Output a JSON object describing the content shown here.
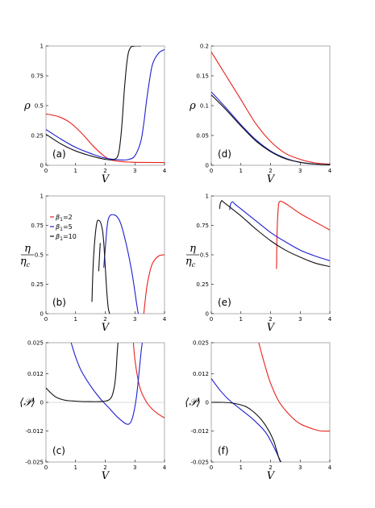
{
  "colors": {
    "beta2": "#e8201c",
    "beta5": "#1f1fd0",
    "beta10": "#111111"
  },
  "chart_data": [
    {
      "panel": "(a)",
      "type": "line",
      "xlabel": "V",
      "ylabel": "ρ",
      "xlim": [
        0,
        4
      ],
      "ylim": [
        0,
        1
      ],
      "xticks": [
        0,
        1,
        2,
        3,
        4
      ],
      "xtick_labels": [
        "0",
        "1",
        "2",
        "3",
        "4"
      ],
      "yticks": [
        0,
        0.25,
        0.5,
        0.75,
        1
      ],
      "ytick_labels": [
        "0",
        "0.25",
        "0.5",
        "0.75",
        "1"
      ],
      "series": [
        {
          "key": "beta2",
          "x": [
            0,
            0.4,
            0.8,
            1.2,
            1.6,
            2.0,
            2.2,
            2.4,
            2.6,
            2.8,
            3.0,
            3.4,
            4.0
          ],
          "y": [
            0.43,
            0.41,
            0.36,
            0.27,
            0.16,
            0.07,
            0.045,
            0.035,
            0.03,
            0.027,
            0.025,
            0.024,
            0.023
          ]
        },
        {
          "key": "beta5",
          "x": [
            0,
            0.5,
            1.0,
            1.5,
            2.0,
            2.5,
            2.8,
            3.0,
            3.2,
            3.3,
            3.4,
            3.5,
            3.6,
            3.8,
            4.0
          ],
          "y": [
            0.3,
            0.22,
            0.15,
            0.1,
            0.06,
            0.045,
            0.05,
            0.08,
            0.2,
            0.35,
            0.55,
            0.72,
            0.85,
            0.94,
            0.97
          ]
        },
        {
          "key": "beta10",
          "x": [
            0,
            0.5,
            1.0,
            1.5,
            2.0,
            2.3,
            2.45,
            2.55,
            2.65,
            2.75,
            2.85,
            3.0,
            3.2
          ],
          "y": [
            0.26,
            0.18,
            0.12,
            0.08,
            0.05,
            0.05,
            0.1,
            0.3,
            0.65,
            0.9,
            0.985,
            1.0,
            1.0
          ]
        }
      ]
    },
    {
      "panel": "(d)",
      "type": "line",
      "xlabel": "V",
      "ylabel": "ρ",
      "xlim": [
        0,
        4
      ],
      "ylim": [
        0,
        0.2
      ],
      "xticks": [
        0,
        1,
        2,
        3,
        4
      ],
      "xtick_labels": [
        "0",
        "1",
        "2",
        "3",
        "4"
      ],
      "yticks": [
        0,
        0.05,
        0.1,
        0.15,
        0.2
      ],
      "ytick_labels": [
        "0",
        "0.05",
        "0.1",
        "0.15",
        "0.2"
      ],
      "series": [
        {
          "key": "beta2",
          "x": [
            0,
            0.5,
            1.0,
            1.5,
            2.0,
            2.5,
            3.0,
            3.5,
            4.0
          ],
          "y": [
            0.19,
            0.15,
            0.11,
            0.07,
            0.04,
            0.02,
            0.01,
            0.004,
            0.002
          ]
        },
        {
          "key": "beta5",
          "x": [
            0,
            0.5,
            1.0,
            1.5,
            2.0,
            2.5,
            3.0,
            3.5,
            4.0
          ],
          "y": [
            0.123,
            0.096,
            0.068,
            0.043,
            0.024,
            0.012,
            0.005,
            0.002,
            0.001
          ]
        },
        {
          "key": "beta10",
          "x": [
            0,
            0.5,
            1.0,
            1.5,
            2.0,
            2.5,
            3.0,
            3.5,
            4.0
          ],
          "y": [
            0.118,
            0.093,
            0.066,
            0.041,
            0.023,
            0.011,
            0.005,
            0.002,
            0.001
          ]
        }
      ]
    },
    {
      "panel": "(b)",
      "type": "line",
      "xlabel": "V",
      "ylabel": "η",
      "ylabel_sub": "η_c",
      "xlim": [
        0,
        4
      ],
      "ylim": [
        0,
        1
      ],
      "xticks": [
        0,
        1,
        2,
        3,
        4
      ],
      "xtick_labels": [
        "0",
        "1",
        "2",
        "3",
        "4"
      ],
      "yticks": [
        0,
        0.25,
        0.5,
        0.75,
        1
      ],
      "ytick_labels": [
        "0",
        "0.25",
        "0.5",
        "0.75",
        "1"
      ],
      "legend": {
        "placement": "top-left",
        "entries": [
          {
            "key": "beta2",
            "label": "β1=2"
          },
          {
            "key": "beta5",
            "label": "β1=5"
          },
          {
            "key": "beta10",
            "label": "β1=10"
          }
        ]
      },
      "series": [
        {
          "key": "beta2",
          "x": [
            3.3,
            3.4,
            3.5,
            3.6,
            3.8,
            4.0
          ],
          "y": [
            0.0,
            0.22,
            0.35,
            0.43,
            0.49,
            0.5
          ]
        },
        {
          "key": "beta5",
          "x": [
            1.95,
            2.0,
            2.1,
            2.3,
            2.5,
            2.7,
            2.9,
            3.05,
            3.1,
            3.12
          ],
          "y": [
            0.39,
            0.55,
            0.8,
            0.84,
            0.78,
            0.6,
            0.35,
            0.1,
            0.02,
            0.0
          ]
        },
        {
          "key": "beta10",
          "x": [
            1.55,
            1.6,
            1.7,
            1.8,
            1.9,
            1.95,
            2.0,
            2.05,
            2.1,
            2.15
          ],
          "y": [
            0.1,
            0.45,
            0.75,
            0.79,
            0.72,
            0.6,
            0.4,
            0.2,
            0.05,
            0.0
          ]
        }
      ],
      "extra_segments": [
        {
          "key": "beta10",
          "x": [
            1.78,
            1.83
          ],
          "y": [
            0.36,
            0.6
          ]
        }
      ]
    },
    {
      "panel": "(e)",
      "type": "line",
      "xlabel": "V",
      "ylabel": "η",
      "ylabel_sub": "η_c",
      "xlim": [
        0,
        4
      ],
      "ylim": [
        0,
        1
      ],
      "xticks": [
        0,
        1,
        2,
        3,
        4
      ],
      "xtick_labels": [
        "0",
        "1",
        "2",
        "3",
        "4"
      ],
      "yticks": [
        0,
        0.25,
        0.5,
        0.75,
        1
      ],
      "ytick_labels": [
        "0",
        "0.25",
        "0.5",
        "0.75",
        "1"
      ],
      "series": [
        {
          "key": "beta2",
          "x": [
            2.2,
            2.22,
            2.26,
            2.3,
            2.4,
            2.6,
            3.0,
            3.5,
            4.0
          ],
          "y": [
            0.38,
            0.7,
            0.9,
            0.95,
            0.95,
            0.92,
            0.85,
            0.78,
            0.71
          ]
        },
        {
          "key": "beta5",
          "x": [
            0.62,
            0.65,
            0.72,
            0.8,
            1.0,
            1.5,
            2.0,
            2.5,
            3.0,
            3.5,
            4.0
          ],
          "y": [
            0.88,
            0.93,
            0.95,
            0.93,
            0.89,
            0.79,
            0.69,
            0.61,
            0.54,
            0.49,
            0.45
          ]
        },
        {
          "key": "beta10",
          "x": [
            0.28,
            0.3,
            0.35,
            0.4,
            0.6,
            1.0,
            1.5,
            2.0,
            2.5,
            3.0,
            3.5,
            4.0
          ],
          "y": [
            0.89,
            0.93,
            0.96,
            0.95,
            0.91,
            0.83,
            0.72,
            0.62,
            0.54,
            0.48,
            0.43,
            0.4
          ]
        }
      ]
    },
    {
      "panel": "(c)",
      "type": "line",
      "xlabel": "V",
      "ylabel": "⟨𝒫⟩",
      "xlim": [
        0,
        4
      ],
      "ylim": [
        -0.025,
        0.025
      ],
      "xticks": [
        0,
        1,
        2,
        3,
        4
      ],
      "xtick_labels": [
        "0",
        "1",
        "2",
        "3",
        "4"
      ],
      "yticks": [
        -0.025,
        -0.012,
        0,
        0.012,
        0.025
      ],
      "ytick_labels": [
        "-0.025",
        "-0.012",
        "0",
        "0.012",
        "0.025"
      ],
      "zero_line": true,
      "series": [
        {
          "key": "beta2",
          "x": [
            2.95,
            3.0,
            3.1,
            3.2,
            3.4,
            3.6,
            3.8,
            4.0
          ],
          "y": [
            0.025,
            0.018,
            0.01,
            0.005,
            0.0,
            -0.003,
            -0.005,
            -0.0065
          ]
        },
        {
          "key": "beta5",
          "x": [
            0.85,
            1.0,
            1.2,
            1.5,
            1.8,
            2.1,
            2.4,
            2.7,
            2.85,
            2.95,
            3.05,
            3.12,
            3.2,
            3.25
          ],
          "y": [
            0.025,
            0.019,
            0.013,
            0.007,
            0.002,
            -0.002,
            -0.006,
            -0.009,
            -0.0085,
            -0.005,
            0.002,
            0.01,
            0.02,
            0.025
          ]
        },
        {
          "key": "beta10",
          "x": [
            0,
            0.3,
            0.6,
            1.0,
            1.5,
            2.0,
            2.2,
            2.3,
            2.36,
            2.4,
            2.43
          ],
          "y": [
            0.006,
            0.0025,
            0.001,
            0.0005,
            0.0003,
            0.0005,
            0.002,
            0.006,
            0.012,
            0.02,
            0.025
          ]
        }
      ]
    },
    {
      "panel": "(f)",
      "type": "line",
      "xlabel": "V",
      "ylabel": "⟨𝒫⟩",
      "xlim": [
        0,
        4
      ],
      "ylim": [
        -0.025,
        0.025
      ],
      "xticks": [
        0,
        1,
        2,
        3,
        4
      ],
      "xtick_labels": [
        "0",
        "1",
        "2",
        "3",
        "4"
      ],
      "yticks": [
        -0.025,
        -0.012,
        0,
        0.012,
        0.025
      ],
      "ytick_labels": [
        "-0.025",
        "-0.012",
        "0",
        "0.012",
        "0.025"
      ],
      "zero_line": true,
      "series": [
        {
          "key": "beta2",
          "x": [
            1.6,
            1.8,
            2.0,
            2.3,
            2.7,
            3.0,
            3.4,
            3.7,
            4.0
          ],
          "y": [
            0.025,
            0.016,
            0.008,
            0.0,
            -0.006,
            -0.009,
            -0.011,
            -0.012,
            -0.012
          ]
        },
        {
          "key": "beta5",
          "x": [
            0,
            0.3,
            0.6,
            1.0,
            1.4,
            1.8,
            2.0,
            2.2,
            2.35
          ],
          "y": [
            0.01,
            0.005,
            0.001,
            -0.003,
            -0.007,
            -0.012,
            -0.016,
            -0.021,
            -0.025
          ]
        },
        {
          "key": "beta10",
          "x": [
            0,
            0.4,
            0.8,
            1.2,
            1.6,
            1.9,
            2.1,
            2.2,
            2.3,
            2.35
          ],
          "y": [
            0.0,
            0.0,
            -0.0005,
            -0.002,
            -0.006,
            -0.011,
            -0.016,
            -0.02,
            -0.024,
            -0.025
          ]
        }
      ]
    }
  ]
}
